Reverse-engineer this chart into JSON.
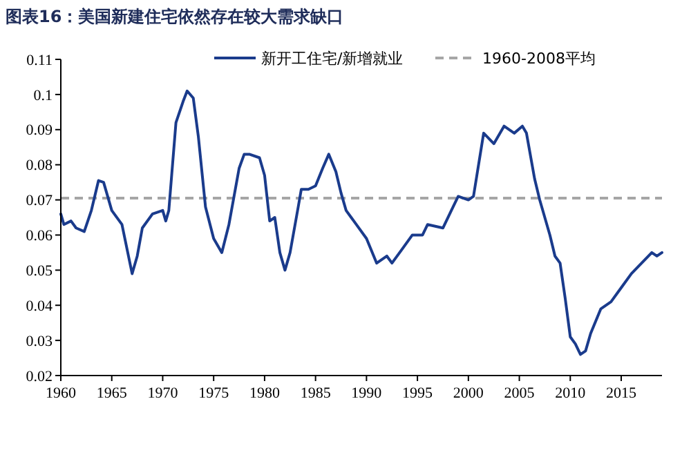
{
  "chart_data": {
    "type": "line",
    "title": "图表16：美国新建住宅依然存在较大需求缺口",
    "xlim": [
      1960,
      2019
    ],
    "xticks": [
      1960,
      1965,
      1970,
      1975,
      1980,
      1985,
      1990,
      1995,
      2000,
      2005,
      2010,
      2015
    ],
    "ylim": [
      0.02,
      0.11
    ],
    "yticks": [
      0.02,
      0.03,
      0.04,
      0.05,
      0.06,
      0.07,
      0.08,
      0.09,
      0.1,
      0.11
    ],
    "grid": false,
    "legend": "top",
    "line_style": "solid",
    "marker": "none",
    "series": [
      {
        "name": "新开工住宅/新增就业",
        "color": "#1a3b8c",
        "x": [
          1960,
          1960.3,
          1961,
          1961.5,
          1962.3,
          1963,
          1963.7,
          1964.2,
          1965,
          1966,
          1966.5,
          1967,
          1967.5,
          1968,
          1969,
          1970,
          1970.3,
          1970.6,
          1971.3,
          1972,
          1972.4,
          1973,
          1973.5,
          1974.2,
          1975,
          1975.8,
          1976.5,
          1977.5,
          1978,
          1978.5,
          1979.5,
          1980,
          1980.5,
          1981,
          1981.5,
          1982,
          1982.5,
          1983.3,
          1983.6,
          1984.3,
          1985,
          1985.7,
          1986.3,
          1987,
          1987.5,
          1988,
          1988.5,
          1989,
          1990,
          1991,
          1992,
          1992.5,
          1993.5,
          1994.5,
          1995.5,
          1996,
          1997.5,
          1998.5,
          1999,
          2000,
          2000.5,
          2001,
          2001.5,
          2002.5,
          2003.5,
          2004.5,
          2005.3,
          2005.7,
          2006.5,
          2007,
          2008,
          2008.5,
          2009,
          2009.5,
          2010,
          2010.5,
          2011,
          2011.5,
          2012,
          2013,
          2014,
          2015,
          2016,
          2017,
          2018,
          2018.5,
          2019
        ],
        "values": [
          0.066,
          0.063,
          0.064,
          0.062,
          0.061,
          0.067,
          0.0755,
          0.075,
          0.067,
          0.063,
          0.056,
          0.049,
          0.054,
          0.062,
          0.066,
          0.067,
          0.064,
          0.067,
          0.092,
          0.098,
          0.101,
          0.099,
          0.088,
          0.068,
          0.059,
          0.055,
          0.063,
          0.079,
          0.083,
          0.083,
          0.082,
          0.077,
          0.064,
          0.065,
          0.055,
          0.05,
          0.055,
          0.068,
          0.073,
          0.073,
          0.074,
          0.079,
          0.083,
          0.078,
          0.072,
          0.067,
          0.065,
          0.063,
          0.059,
          0.052,
          0.054,
          0.052,
          0.056,
          0.06,
          0.06,
          0.063,
          0.062,
          0.068,
          0.071,
          0.07,
          0.071,
          0.08,
          0.089,
          0.086,
          0.091,
          0.089,
          0.091,
          0.089,
          0.076,
          0.07,
          0.06,
          0.054,
          0.052,
          0.042,
          0.031,
          0.029,
          0.026,
          0.027,
          0.032,
          0.039,
          0.041,
          0.045,
          0.049,
          0.052,
          0.055,
          0.054,
          0.055
        ]
      }
    ],
    "ref_lines": [
      {
        "axis": "y",
        "value": 0.0705,
        "label": "1960-2008平均",
        "color": "#a6a6a6",
        "line_style": "dashed"
      }
    ]
  }
}
